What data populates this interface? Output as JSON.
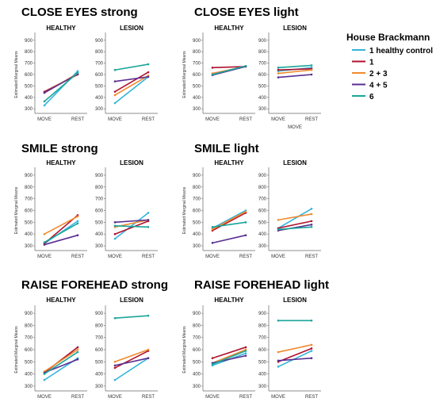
{
  "legend": {
    "title": "House Brackmann",
    "items": [
      {
        "label": "1 healthy control",
        "color": "#35b4dc"
      },
      {
        "label": "1",
        "color": "#b0122e"
      },
      {
        "label": "2 + 3",
        "color": "#f08a2c"
      },
      {
        "label": "4 + 5",
        "color": "#5a2d91"
      },
      {
        "label": "6",
        "color": "#1aa59b"
      }
    ]
  },
  "chart_data": [
    {
      "title": "CLOSE EYES strong",
      "panels": [
        {
          "type": "line",
          "title": "HEALTHY",
          "ylabel": "Estimated Marginal Means",
          "categories": [
            "MOVE",
            "REST"
          ],
          "yticks": [
            300,
            400,
            500,
            600,
            700,
            800,
            900
          ],
          "ylim": [
            260,
            940
          ],
          "series": [
            {
              "name": "1 healthy control",
              "values": [
                330,
                630
              ]
            },
            {
              "name": "1",
              "values": [
                450,
                600
              ]
            },
            {
              "name": "2 + 3",
              "values": [
                440,
                610
              ]
            },
            {
              "name": "4 + 5",
              "values": [
                440,
                605
              ]
            },
            {
              "name": "6",
              "values": [
                365,
                615
              ]
            }
          ]
        },
        {
          "type": "line",
          "title": "LESION",
          "categories": [
            "MOVE",
            "REST"
          ],
          "yticks": [
            300,
            400,
            500,
            600,
            700,
            800,
            900
          ],
          "ylim": [
            260,
            940
          ],
          "series": [
            {
              "name": "1 healthy control",
              "values": [
                350,
                580
              ]
            },
            {
              "name": "1",
              "values": [
                450,
                620
              ]
            },
            {
              "name": "2 + 3",
              "values": [
                420,
                590
              ]
            },
            {
              "name": "4 + 5",
              "values": [
                540,
                580
              ]
            },
            {
              "name": "6",
              "values": [
                640,
                690
              ]
            }
          ]
        }
      ]
    },
    {
      "title": "CLOSE EYES light",
      "panels": [
        {
          "type": "line",
          "title": "HEALTHY",
          "ylabel": "Estimated Marginal Means",
          "categories": [
            "MOVE",
            "REST"
          ],
          "yticks": [
            300,
            400,
            500,
            600,
            700,
            800,
            900
          ],
          "ylim": [
            260,
            940
          ],
          "series": [
            {
              "name": "1 healthy control",
              "values": [
                600,
                670
              ]
            },
            {
              "name": "1",
              "values": [
                660,
                670
              ]
            },
            {
              "name": "2 + 3",
              "values": [
                610,
                670
              ]
            },
            {
              "name": "4 + 5",
              "values": [
                595,
                670
              ]
            },
            {
              "name": "6",
              "values": [
                600,
                675
              ]
            }
          ]
        },
        {
          "type": "line",
          "title": "LESION",
          "xlabel": "MOVE",
          "categories": [
            "MOVE",
            "REST"
          ],
          "yticks": [
            300,
            400,
            500,
            600,
            700,
            800,
            900
          ],
          "ylim": [
            260,
            940
          ],
          "series": [
            {
              "name": "1 healthy control",
              "values": [
                630,
                660
              ]
            },
            {
              "name": "1",
              "values": [
                640,
                650
              ]
            },
            {
              "name": "2 + 3",
              "values": [
                610,
                640
              ]
            },
            {
              "name": "4 + 5",
              "values": [
                575,
                600
              ]
            },
            {
              "name": "6",
              "values": [
                660,
                680
              ]
            }
          ]
        }
      ]
    },
    {
      "title": "SMILE strong",
      "panels": [
        {
          "type": "line",
          "title": "HEALTHY",
          "ylabel": "Estimated Marginal Means",
          "categories": [
            "MOVE",
            "REST"
          ],
          "yticks": [
            300,
            400,
            500,
            600,
            700,
            800,
            900
          ],
          "ylim": [
            260,
            940
          ],
          "series": [
            {
              "name": "1 healthy control",
              "values": [
                320,
                510
              ]
            },
            {
              "name": "1",
              "values": [
                320,
                560
              ]
            },
            {
              "name": "2 + 3",
              "values": [
                400,
                550
              ]
            },
            {
              "name": "4 + 5",
              "values": [
                310,
                390
              ]
            },
            {
              "name": "6",
              "values": [
                330,
                490
              ]
            }
          ]
        },
        {
          "type": "line",
          "title": "LESION",
          "categories": [
            "MOVE",
            "REST"
          ],
          "yticks": [
            300,
            400,
            500,
            600,
            700,
            800,
            900
          ],
          "ylim": [
            260,
            940
          ],
          "series": [
            {
              "name": "1 healthy control",
              "values": [
                360,
                580
              ]
            },
            {
              "name": "1",
              "values": [
                400,
                510
              ]
            },
            {
              "name": "2 + 3",
              "values": [
                460,
                520
              ]
            },
            {
              "name": "4 + 5",
              "values": [
                500,
                520
              ]
            },
            {
              "name": "6",
              "values": [
                470,
                460
              ]
            }
          ]
        }
      ]
    },
    {
      "title": "SMILE light",
      "panels": [
        {
          "type": "line",
          "title": "HEALTHY",
          "ylabel": "Estimated Marginal Means",
          "categories": [
            "MOVE",
            "REST"
          ],
          "yticks": [
            300,
            400,
            500,
            600,
            700,
            800,
            900
          ],
          "ylim": [
            260,
            940
          ],
          "series": [
            {
              "name": "1 healthy control",
              "values": [
                450,
                600
              ]
            },
            {
              "name": "1",
              "values": [
                430,
                580
              ]
            },
            {
              "name": "2 + 3",
              "values": [
                440,
                590
              ]
            },
            {
              "name": "4 + 5",
              "values": [
                325,
                390
              ]
            },
            {
              "name": "6",
              "values": [
                460,
                500
              ]
            }
          ]
        },
        {
          "type": "line",
          "title": "LESION",
          "categories": [
            "MOVE",
            "REST"
          ],
          "yticks": [
            300,
            400,
            500,
            600,
            700,
            800,
            900
          ],
          "ylim": [
            260,
            940
          ],
          "series": [
            {
              "name": "1 healthy control",
              "values": [
                450,
                615
              ]
            },
            {
              "name": "1",
              "values": [
                450,
                510
              ]
            },
            {
              "name": "2 + 3",
              "values": [
                520,
                570
              ]
            },
            {
              "name": "4 + 5",
              "values": [
                430,
                480
              ]
            },
            {
              "name": "6",
              "values": [
                440,
                460
              ]
            }
          ]
        }
      ]
    },
    {
      "title": "RAISE FOREHEAD strong",
      "panels": [
        {
          "type": "line",
          "title": "HEALTHY",
          "ylabel": "Estimated Marginal Means",
          "categories": [
            "MOVE",
            "REST"
          ],
          "yticks": [
            300,
            400,
            500,
            600,
            700,
            800,
            900
          ],
          "ylim": [
            260,
            940
          ],
          "series": [
            {
              "name": "1 healthy control",
              "values": [
                350,
                530
              ]
            },
            {
              "name": "1",
              "values": [
                410,
                620
              ]
            },
            {
              "name": "2 + 3",
              "values": [
                420,
                600
              ]
            },
            {
              "name": "4 + 5",
              "values": [
                410,
                520
              ]
            },
            {
              "name": "6",
              "values": [
                400,
                580
              ]
            }
          ]
        },
        {
          "type": "line",
          "title": "LESION",
          "categories": [
            "MOVE",
            "REST"
          ],
          "yticks": [
            300,
            400,
            500,
            600,
            700,
            800,
            900
          ],
          "ylim": [
            260,
            940
          ],
          "series": [
            {
              "name": "1 healthy control",
              "values": [
                350,
                530
              ]
            },
            {
              "name": "1",
              "values": [
                450,
                590
              ]
            },
            {
              "name": "2 + 3",
              "values": [
                500,
                600
              ]
            },
            {
              "name": "4 + 5",
              "values": [
                470,
                530
              ]
            },
            {
              "name": "6",
              "values": [
                860,
                880
              ]
            }
          ]
        }
      ]
    },
    {
      "title": "RAISE FOREHEAD light",
      "panels": [
        {
          "type": "line",
          "title": "HEALTHY",
          "ylabel": "Estimated Marginal Means",
          "categories": [
            "MOVE",
            "REST"
          ],
          "yticks": [
            300,
            400,
            500,
            600,
            700,
            800,
            900
          ],
          "ylim": [
            260,
            940
          ],
          "series": [
            {
              "name": "1 healthy control",
              "values": [
                470,
                570
              ]
            },
            {
              "name": "1",
              "values": [
                530,
                620
              ]
            },
            {
              "name": "2 + 3",
              "values": [
                490,
                600
              ]
            },
            {
              "name": "4 + 5",
              "values": [
                490,
                550
              ]
            },
            {
              "name": "6",
              "values": [
                480,
                590
              ]
            }
          ]
        },
        {
          "type": "line",
          "title": "LESION",
          "categories": [
            "MOVE",
            "REST"
          ],
          "yticks": [
            300,
            400,
            500,
            600,
            700,
            800,
            900
          ],
          "ylim": [
            260,
            940
          ],
          "series": [
            {
              "name": "1 healthy control",
              "values": [
                460,
                590
              ]
            },
            {
              "name": "1",
              "values": [
                500,
                610
              ]
            },
            {
              "name": "2 + 3",
              "values": [
                580,
                640
              ]
            },
            {
              "name": "4 + 5",
              "values": [
                510,
                530
              ]
            },
            {
              "name": "6",
              "values": [
                840,
                840
              ]
            }
          ]
        }
      ]
    }
  ]
}
